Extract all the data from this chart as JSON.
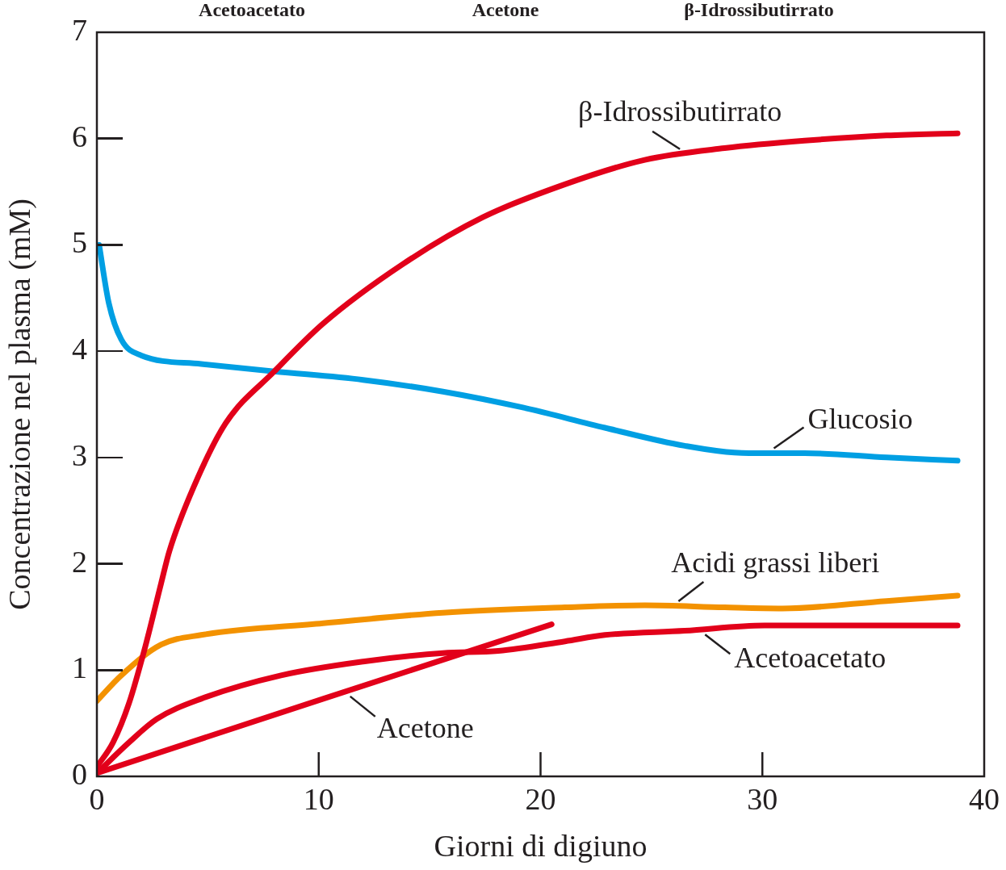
{
  "chart_data": {
    "type": "line",
    "xlabel": "Giorni di digiuno",
    "ylabel": "Concentrazione nel plasma (mM)",
    "xlim": [
      0,
      40
    ],
    "xticks": [
      0,
      10,
      20,
      30,
      40
    ],
    "ylim": [
      0,
      7
    ],
    "yticks": [
      0,
      1,
      2,
      3,
      4,
      5,
      6,
      7
    ],
    "grid": false,
    "legend": false,
    "marker": "none",
    "line_style": "solid",
    "annotations": [
      "Acetoacetato",
      "Acetone",
      "β-Idrossibutirrato"
    ],
    "series": [
      {
        "name": "β-Idrossibutirrato",
        "color": "#e2001a",
        "x": [
          0,
          0.73,
          1.45,
          2.18,
          2.9,
          3.27,
          4.36,
          5.8,
          8.0,
          10.2,
          13.8,
          17.4,
          21.1,
          24.7,
          28.3,
          31.9,
          35.6,
          38.8
        ],
        "values": [
          0.09,
          0.32,
          0.69,
          1.22,
          1.82,
          2.12,
          2.72,
          3.32,
          3.81,
          4.26,
          4.82,
          5.26,
          5.57,
          5.8,
          5.91,
          5.98,
          6.03,
          6.05
        ]
      },
      {
        "name": "Glucosio",
        "color": "#009fe3",
        "x": [
          0.1,
          0.54,
          1.1,
          2,
          4.7,
          8,
          12,
          15.6,
          19.2,
          22.9,
          26.5,
          29.4,
          31.9,
          35.6,
          38.8
        ],
        "values": [
          5.0,
          4.45,
          4.11,
          3.96,
          3.88,
          3.81,
          3.73,
          3.62,
          3.47,
          3.28,
          3.11,
          3.04,
          3.04,
          3.0,
          2.97
        ]
      },
      {
        "name": "Acidi grassi liberi",
        "color": "#f39200",
        "x": [
          0,
          1.1,
          2.9,
          4.7,
          10.2,
          15.6,
          21.1,
          24.7,
          28.3,
          30.9,
          35.6,
          38.8
        ],
        "values": [
          0.71,
          0.95,
          1.24,
          1.33,
          1.44,
          1.54,
          1.59,
          1.61,
          1.59,
          1.58,
          1.65,
          1.7
        ]
      },
      {
        "name": "Acetoacetato",
        "color": "#e2001a",
        "x": [
          0,
          1.45,
          2.7,
          4.7,
          8.3,
          12,
          15.6,
          18.1,
          21.1,
          22.9,
          26.5,
          30.1,
          38.8
        ],
        "values": [
          0.03,
          0.32,
          0.54,
          0.73,
          0.95,
          1.08,
          1.16,
          1.18,
          1.27,
          1.33,
          1.37,
          1.42,
          1.42
        ]
      },
      {
        "name": "Acetone",
        "color": "#e2001a",
        "x": [
          0,
          10.2,
          20.5
        ],
        "values": [
          0.03,
          0.73,
          1.43
        ]
      }
    ]
  }
}
